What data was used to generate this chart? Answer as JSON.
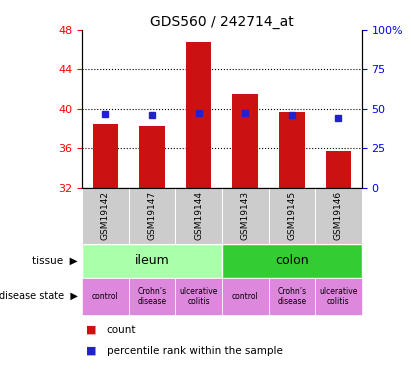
{
  "title": "GDS560 / 242714_at",
  "samples": [
    "GSM19142",
    "GSM19147",
    "GSM19144",
    "GSM19143",
    "GSM19145",
    "GSM19146"
  ],
  "bar_values": [
    38.5,
    38.2,
    46.8,
    41.5,
    39.7,
    35.7
  ],
  "percentile_values": [
    39.5,
    39.4,
    39.6,
    39.6,
    39.4,
    39.1
  ],
  "bar_bottom": 32,
  "ylim": [
    32,
    48
  ],
  "yticks": [
    32,
    36,
    40,
    44,
    48
  ],
  "y2lim": [
    0,
    100
  ],
  "y2ticks": [
    0,
    25,
    50,
    75,
    100
  ],
  "y2ticklabels": [
    "0",
    "25",
    "50",
    "75",
    "100%"
  ],
  "bar_color": "#cc1111",
  "percentile_color": "#2222cc",
  "tissue_colors": [
    "#aaffaa",
    "#33cc33"
  ],
  "disease_color": "#dd88dd",
  "sample_bg_color": "#cccccc",
  "dotted_grid_values": [
    36,
    40,
    44
  ],
  "legend_count_label": "count",
  "legend_percentile_label": "percentile rank within the sample",
  "title_fontsize": 10,
  "tick_fontsize": 8,
  "sample_label_fontsize": 6.5
}
